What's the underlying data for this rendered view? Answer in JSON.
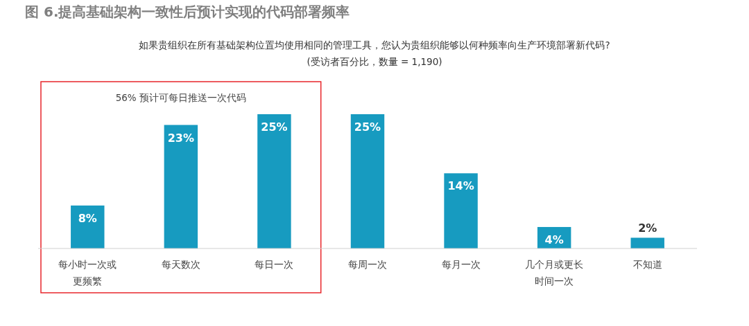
{
  "chart_data": {
    "type": "bar",
    "title": "图 6.提高基础架构一致性后预计实现的代码部署频率",
    "subtitle": "如果贵组织在所有基础架构位置均使用相同的管理工具，您认为贵组织能够以何种频率向生产环境部署新代码?\n(受访者百分比，数量 = 1,190)",
    "categories": [
      "每小时一次或更频繁",
      "每天数次",
      "每日一次",
      "每周一次",
      "每月一次",
      "几个月或更长时间一次",
      "不知道"
    ],
    "values": [
      8,
      23,
      25,
      25,
      14,
      4,
      2
    ],
    "value_labels": [
      "8%",
      "23%",
      "25%",
      "25%",
      "14%",
      "4%",
      "2%"
    ],
    "color": "#179bc0",
    "tick_labels": "x",
    "annotations": [
      "56% 预计可每日推送一次代码"
    ]
  }
}
